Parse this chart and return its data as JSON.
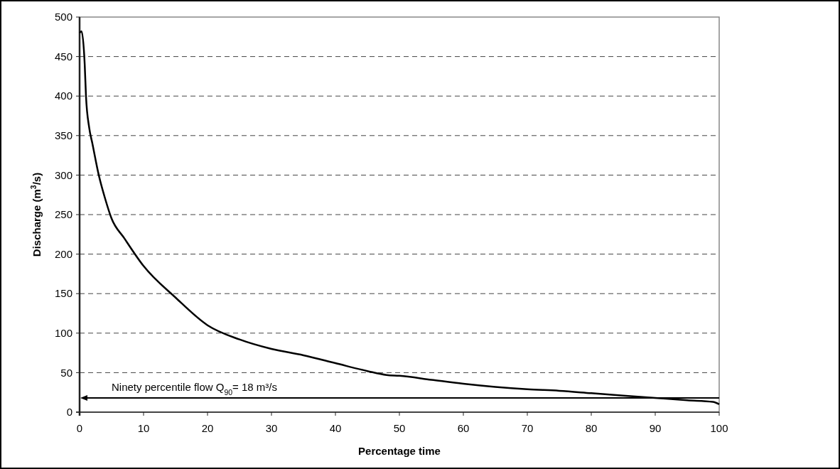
{
  "chart_data": {
    "type": "line",
    "xlabel": "Percentage time",
    "ylabel": "Discharge (m$^{3}$/s)",
    "x": [
      0,
      0.3,
      0.8,
      1,
      1.5,
      2,
      3,
      4,
      5,
      7,
      10,
      15,
      20,
      25,
      30,
      35,
      40,
      45,
      48,
      50,
      55,
      60,
      65,
      70,
      75,
      80,
      85,
      90,
      95,
      99,
      100
    ],
    "series": [
      {
        "color": "#000000",
        "values": [
          480,
          482,
          440,
          400,
          360,
          340,
          300,
          270,
          245,
          220,
          185,
          145,
          110,
          92,
          80,
          72,
          62,
          52,
          47,
          46,
          41,
          36,
          32,
          29,
          27,
          24,
          21,
          18,
          15,
          13,
          10
        ]
      }
    ],
    "xlim": [
      0,
      100
    ],
    "xticks": [
      0,
      10,
      20,
      30,
      40,
      50,
      60,
      70,
      80,
      90,
      100
    ],
    "ylim": [
      0,
      500
    ],
    "yticks": [
      0,
      50,
      100,
      150,
      200,
      250,
      300,
      350,
      400,
      450,
      500
    ],
    "grid": "y",
    "marker": "none",
    "line_style": "solid",
    "ref_lines": [
      {
        "axis": "y",
        "value": 18,
        "label": "Ninety percentile flow Q$_{90}$= 18 m³/s",
        "color": "#000000"
      }
    ]
  }
}
